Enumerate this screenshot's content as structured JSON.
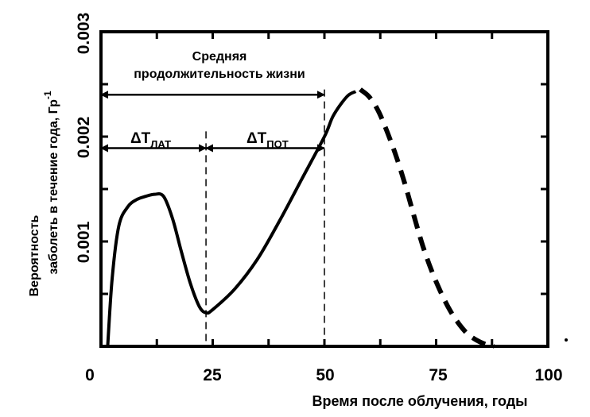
{
  "chart_data": {
    "type": "line",
    "xlabel": "Время после облучения, годы",
    "ylabel_line1": "Вероятность",
    "ylabel_line2_main": "заболеть в течение года, Гр",
    "ylabel_line2_sup": "-1",
    "xlim": [
      0,
      100
    ],
    "ylim": [
      0,
      0.003
    ],
    "x_ticks": [
      0,
      25,
      50,
      75,
      100
    ],
    "x_tick_labels": [
      "0",
      "25",
      "50",
      "75",
      "100"
    ],
    "y_ticks": [
      0.001,
      0.002,
      0.003
    ],
    "y_tick_labels": [
      "0.001",
      "0.002",
      "0.003"
    ],
    "grid": false,
    "series": [
      {
        "style": "solid",
        "x": [
          1.5,
          2.5,
          4,
          6,
          8,
          10,
          12,
          14,
          16,
          18,
          20,
          22,
          23.5,
          25,
          30,
          35,
          40,
          45,
          50,
          52,
          55,
          57
        ],
        "y": [
          0.0,
          0.00065,
          0.00115,
          0.00133,
          0.0014,
          0.00143,
          0.00145,
          0.00143,
          0.00122,
          0.0009,
          0.0006,
          0.00038,
          0.00032,
          0.00035,
          0.00055,
          0.00083,
          0.0012,
          0.0016,
          0.002,
          0.0022,
          0.00238,
          0.00243
        ]
      },
      {
        "style": "dashed",
        "x": [
          58,
          60,
          62,
          64,
          66,
          68,
          70,
          72,
          74,
          76,
          78,
          80,
          82,
          84,
          86,
          88
        ],
        "y": [
          0.00245,
          0.00238,
          0.00225,
          0.00205,
          0.00182,
          0.00155,
          0.00125,
          0.00096,
          0.00072,
          0.00052,
          0.00035,
          0.00022,
          0.00012,
          6e-05,
          2e-05,
          0.0
        ]
      }
    ],
    "annotations": {
      "mean_lifetime_line1": "Средняя",
      "mean_lifetime_line2": "продолжительность жизни",
      "delta_symbol": "ΔT",
      "t_lat_sub": "ЛАТ",
      "t_pot_sub": "ПОТ"
    },
    "markers": {
      "vline_latent_end": 23.5,
      "vline_mean_life": 50,
      "mean_life_arrow_y": 0.0024,
      "delta_arrow_y": 0.00189
    }
  }
}
